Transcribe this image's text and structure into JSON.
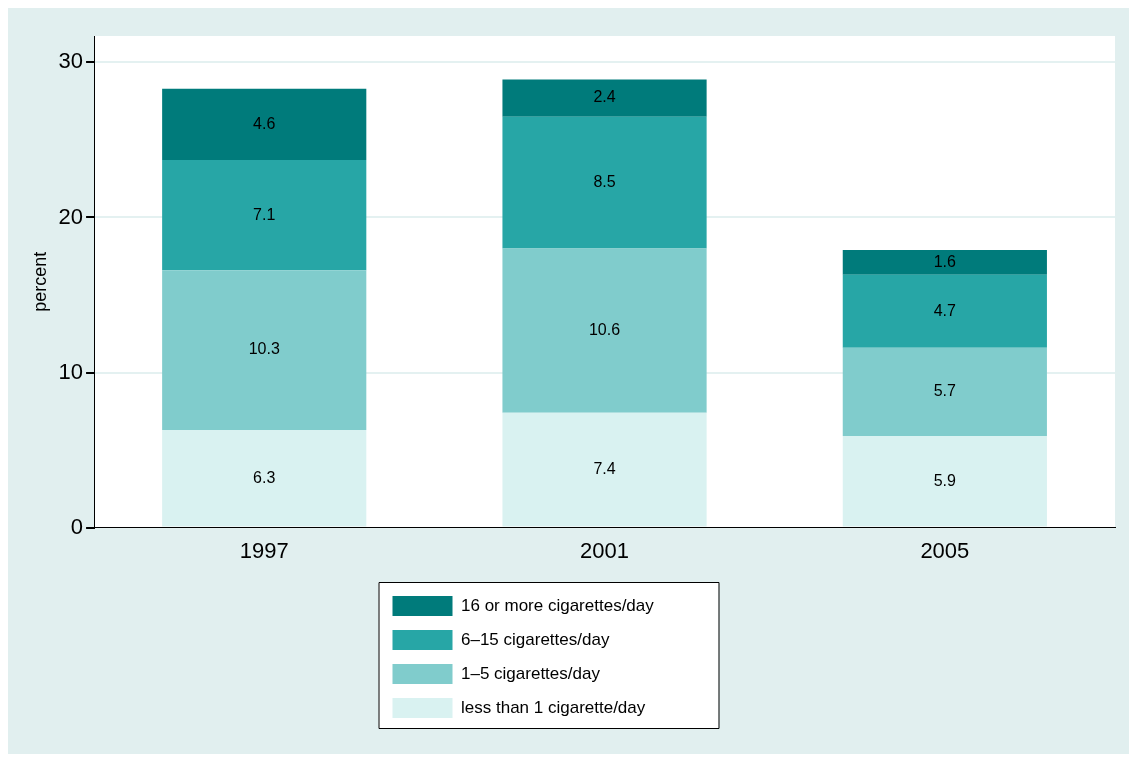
{
  "chart_data": {
    "type": "bar",
    "stacked": true,
    "ylabel": "percent",
    "categories": [
      "1997",
      "2001",
      "2005"
    ],
    "series": [
      {
        "name": "less than 1 cigarette/day",
        "color": "#d9f2f1",
        "values": [
          6.3,
          7.4,
          5.9
        ]
      },
      {
        "name": "1–5 cigarettes/day",
        "color": "#80cccc",
        "values": [
          10.3,
          10.6,
          5.7
        ]
      },
      {
        "name": "6–15 cigarettes/day",
        "color": "#27a6a6",
        "values": [
          7.1,
          8.5,
          4.7
        ]
      },
      {
        "name": "16 or more cigarettes/day",
        "color": "#007b7b",
        "values": [
          4.6,
          2.4,
          1.6
        ]
      }
    ],
    "ylim": [
      0,
      31.7
    ],
    "yticks": [
      0,
      10,
      20,
      30
    ],
    "grid": "y",
    "legend": "bottom",
    "data_labels": true
  }
}
